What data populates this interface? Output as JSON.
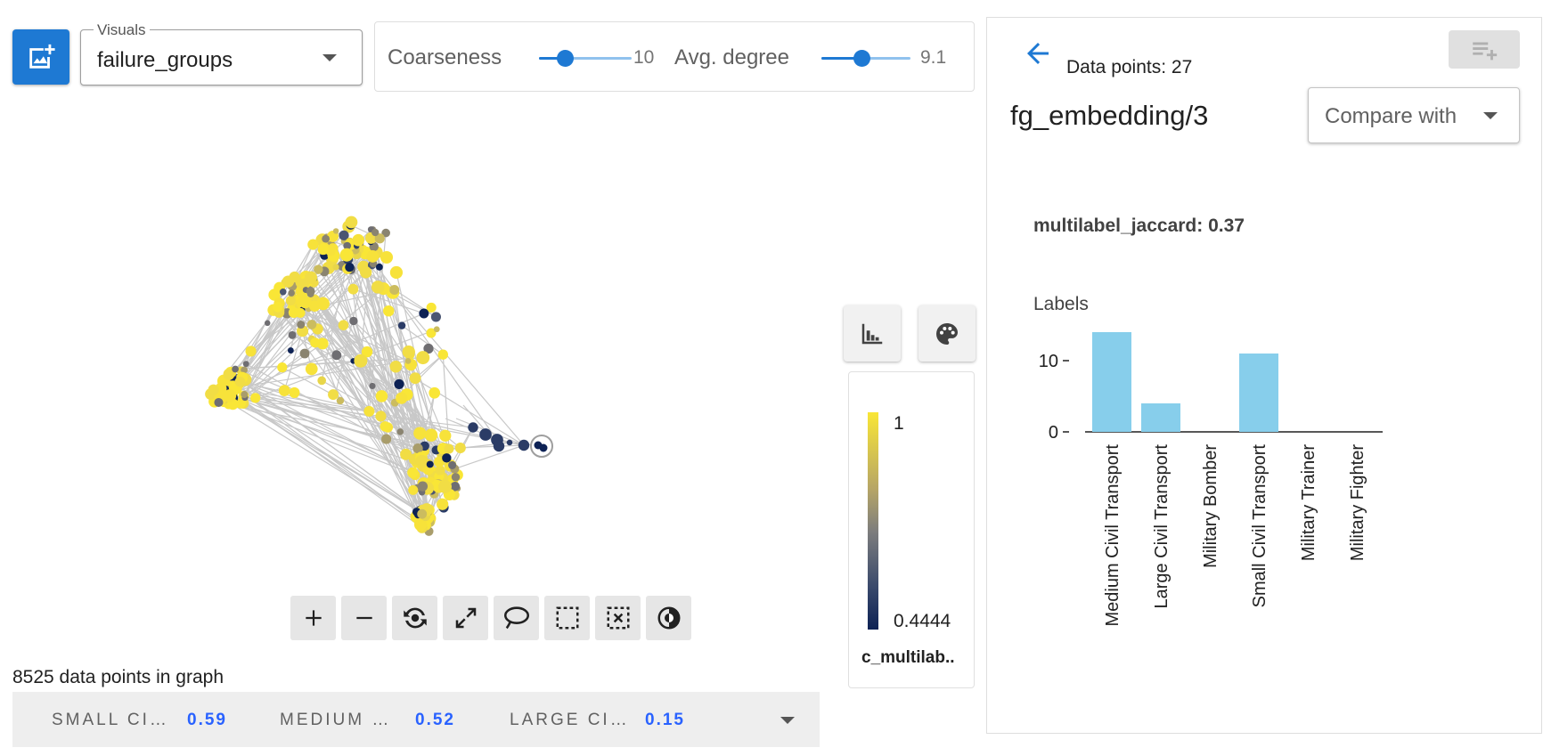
{
  "toolbar": {
    "visuals_legend": "Visuals",
    "visuals_value": "failure_groups",
    "coarseness_label": "Coarseness",
    "coarseness_value": "10",
    "coarseness_fraction": 0.28,
    "avg_degree_label": "Avg. degree",
    "avg_degree_value": "9.1",
    "avg_degree_fraction": 0.45,
    "accent_color": "#1e79d3"
  },
  "graph": {
    "points_count_text": "8525 data points in graph",
    "tools": [
      "zoom-in-icon",
      "zoom-out-icon",
      "recenter-icon",
      "fit-icon",
      "lasso-icon",
      "box-select-icon",
      "clear-selection-icon",
      "contrast-icon"
    ]
  },
  "metrics_bar": {
    "items": [
      {
        "name": "SMALL CI…",
        "value": "0.59"
      },
      {
        "name": "MEDIUM …",
        "value": "0.52"
      },
      {
        "name": "LARGE CI…",
        "value": "0.15"
      }
    ]
  },
  "color_legend": {
    "max": "1",
    "min": "0.4444",
    "title": "c_multilab..",
    "color_high": "#f9e636",
    "color_low": "#0d2255"
  },
  "right_panel": {
    "data_points_label": "Data points: 27",
    "embedding_title": "fg_embedding/3",
    "compare_label": "Compare with",
    "metric_text": "multilabel_jaccard: 0.37"
  },
  "chart_data": {
    "type": "bar",
    "title": "Labels",
    "categories": [
      "Medium Civil Transport",
      "Large Civil Transport",
      "Military Bomber",
      "Small Civil Transport",
      "Military Trainer",
      "Military Fighter"
    ],
    "values": [
      14,
      4,
      0,
      11,
      0,
      0
    ],
    "yticks": [
      "10",
      "0"
    ],
    "ylim": [
      0,
      14
    ],
    "bar_color": "#87ceeb",
    "grid": false
  }
}
